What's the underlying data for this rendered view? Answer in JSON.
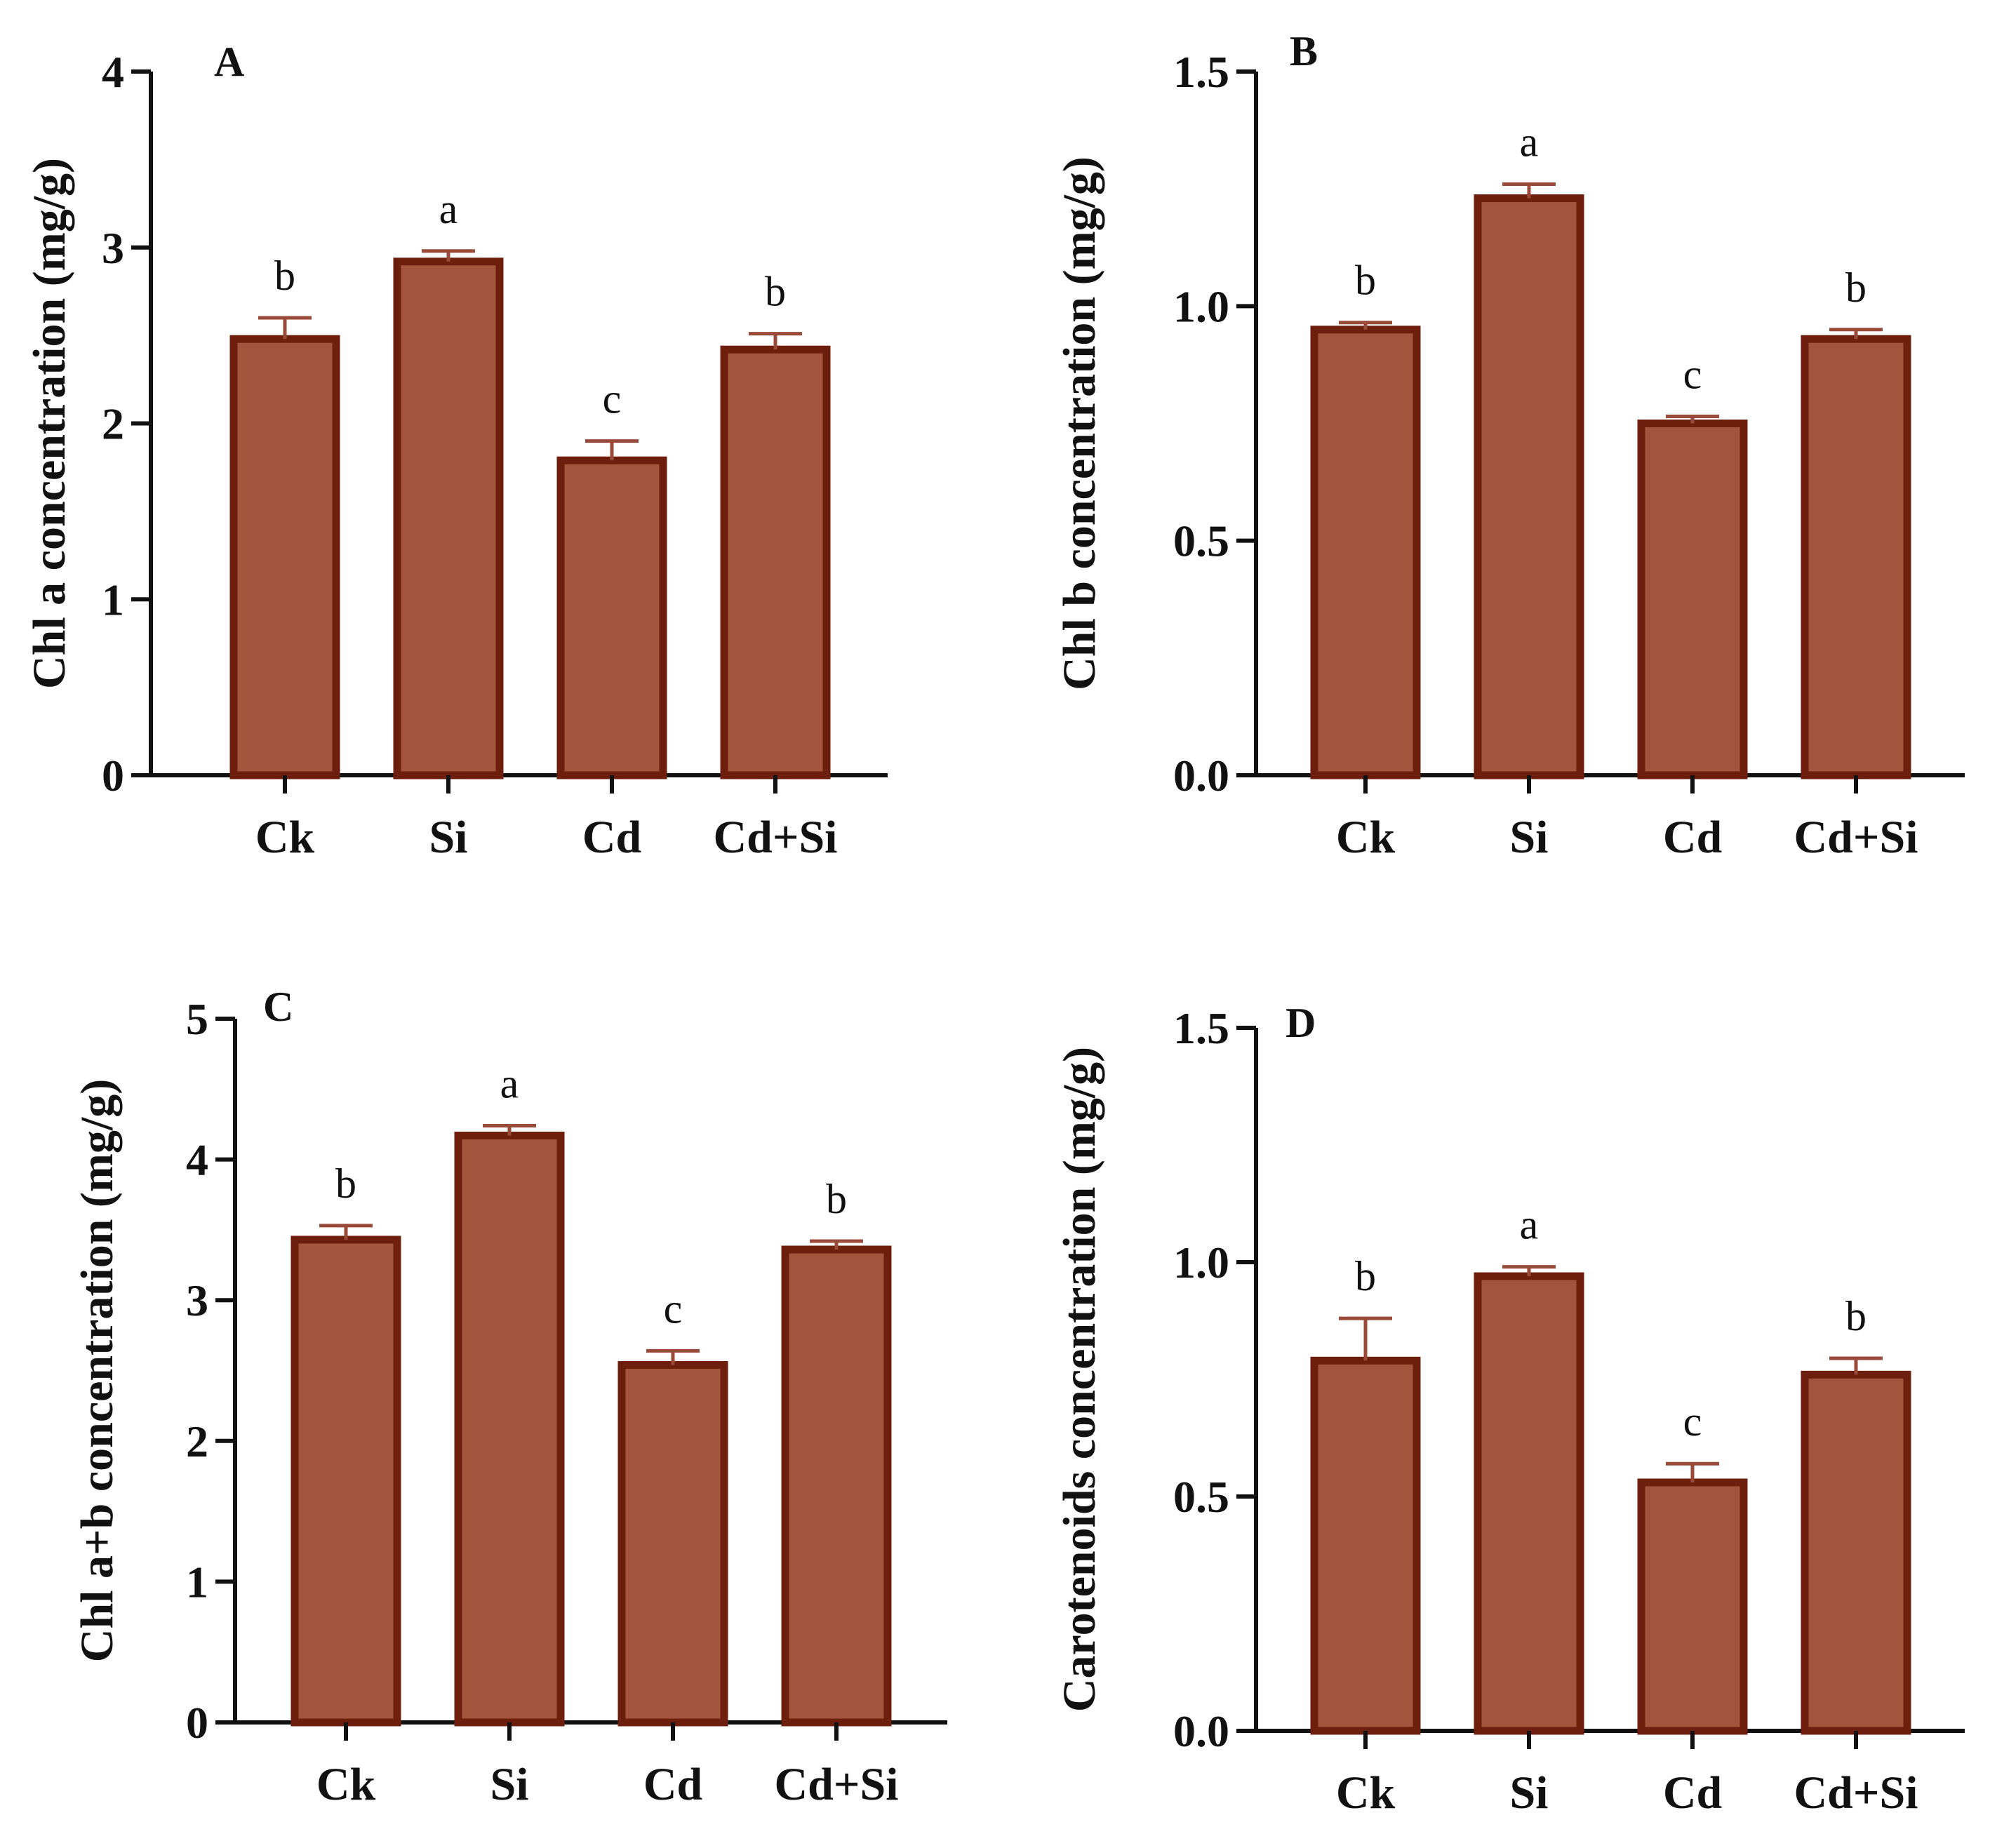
{
  "chart_data": [
    {
      "type": "bar",
      "panel": "A",
      "categories": [
        "Ck",
        "Si",
        "Cd",
        "Cd+Si"
      ],
      "values": [
        2.48,
        2.92,
        1.79,
        2.42
      ],
      "errors": [
        0.12,
        0.06,
        0.11,
        0.09
      ],
      "significance": [
        "b",
        "a",
        "c",
        "b"
      ],
      "ylabel": "Chl a concentration (mg/g)",
      "ylim": [
        0,
        4
      ],
      "yticks": [
        0,
        1,
        2,
        3,
        4
      ],
      "ytick_labels": [
        "0",
        "1",
        "2",
        "3",
        "4"
      ]
    },
    {
      "type": "bar",
      "panel": "B",
      "categories": [
        "Ck",
        "Si",
        "Cd",
        "Cd+Si"
      ],
      "values": [
        0.95,
        1.23,
        0.75,
        0.93
      ],
      "errors": [
        0.015,
        0.03,
        0.015,
        0.02
      ],
      "significance": [
        "b",
        "a",
        "c",
        "b"
      ],
      "ylabel": "Chl b concentration (mg/g)",
      "ylim": [
        0,
        1.5
      ],
      "yticks": [
        0,
        0.5,
        1.0,
        1.5
      ],
      "ytick_labels": [
        "0.0",
        "0.5",
        "1.0",
        "1.5"
      ]
    },
    {
      "type": "bar",
      "panel": "C",
      "categories": [
        "Ck",
        "Si",
        "Cd",
        "Cd+Si"
      ],
      "values": [
        3.43,
        4.17,
        2.54,
        3.36
      ],
      "errors": [
        0.1,
        0.07,
        0.1,
        0.06
      ],
      "significance": [
        "b",
        "a",
        "c",
        "b"
      ],
      "ylabel": "Chl a+b concentration (mg/g)",
      "ylim": [
        0,
        5
      ],
      "yticks": [
        0,
        1,
        2,
        3,
        4,
        5
      ],
      "ytick_labels": [
        "0",
        "1",
        "2",
        "3",
        "4",
        "5"
      ]
    },
    {
      "type": "bar",
      "panel": "D",
      "categories": [
        "Ck",
        "Si",
        "Cd",
        "Cd+Si"
      ],
      "values": [
        0.79,
        0.97,
        0.53,
        0.76
      ],
      "errors": [
        0.09,
        0.02,
        0.04,
        0.035
      ],
      "significance": [
        "b",
        "a",
        "c",
        "b"
      ],
      "ylabel": "Carotenoids concentration (mg/g)",
      "ylim": [
        0,
        1.5
      ],
      "yticks": [
        0,
        0.5,
        1.0,
        1.5
      ],
      "ytick_labels": [
        "0.0",
        "0.5",
        "1.0",
        "1.5"
      ]
    }
  ],
  "colors": {
    "bar_fill": "#a3543c",
    "bar_edge": "#6e1e0c",
    "error_bar": "#9a4a38",
    "axis": "#111111"
  }
}
